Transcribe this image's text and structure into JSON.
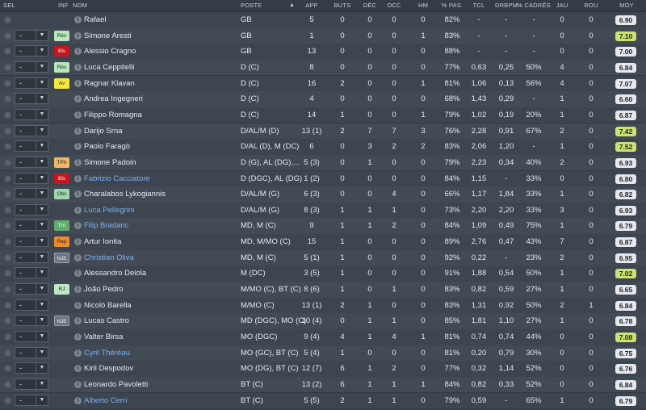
{
  "headers": {
    "sel": "SEL",
    "inf": "INF",
    "nom": "NOM",
    "poste": "POSTE",
    "app": "APP",
    "buts": "BUTS",
    "dec": "DÉC",
    "occ": "OCC",
    "hm": "HM",
    "pas": "% PAS.",
    "tcl": "TCL",
    "drbpm": "DRBPM",
    "cadres": "% CADRÉS",
    "jau": "JAU",
    "rou": "ROU",
    "moy": "MOY"
  },
  "colors": {
    "badge_res": "#b8e6bf",
    "badge_bls": "#c8141e",
    "badge_av": "#f2e640",
    "badge_tph": "#f0b862",
    "badge_obs": "#9fd9a8",
    "badge_trn": "#5fae6e",
    "badge_rep": "#ef8a2a",
    "badge_nje": "#6c7480",
    "badge_rj": "#bfe7c4",
    "rating_high": "#cbe26f",
    "rating_normal": "#e6e8ec"
  },
  "players": [
    {
      "sel": "",
      "badge": "",
      "name": "Rafael",
      "loan": false,
      "poste": "GB",
      "app": "5",
      "buts": "0",
      "dec": "0",
      "occ": "0",
      "hm": "0",
      "pas": "82%",
      "tcl": "-",
      "drbpm": "-",
      "cadres": "-",
      "jau": "0",
      "rou": "0",
      "moy": "6.90",
      "high": false
    },
    {
      "sel": "-",
      "badge": "Rés",
      "name": "Simone Aresti",
      "loan": false,
      "poste": "GB",
      "app": "1",
      "buts": "0",
      "dec": "0",
      "occ": "0",
      "hm": "1",
      "pas": "83%",
      "tcl": "-",
      "drbpm": "-",
      "cadres": "-",
      "jau": "0",
      "rou": "0",
      "moy": "7.10",
      "high": true
    },
    {
      "sel": "-",
      "badge": "Bls",
      "name": "Alessio Cragno",
      "loan": false,
      "poste": "GB",
      "app": "13",
      "buts": "0",
      "dec": "0",
      "occ": "0",
      "hm": "0",
      "pas": "88%",
      "tcl": "-",
      "drbpm": "-",
      "cadres": "-",
      "jau": "0",
      "rou": "0",
      "moy": "7.00",
      "high": false
    },
    {
      "sel": "-",
      "badge": "Rés",
      "name": "Luca Ceppitelli",
      "loan": false,
      "poste": "D (C)",
      "app": "8",
      "buts": "0",
      "dec": "0",
      "occ": "0",
      "hm": "0",
      "pas": "77%",
      "tcl": "0,63",
      "drbpm": "0,25",
      "cadres": "50%",
      "jau": "4",
      "rou": "0",
      "moy": "6.84",
      "high": false
    },
    {
      "sel": "-",
      "badge": "Av",
      "name": "Ragnar Klavan",
      "loan": false,
      "poste": "D (C)",
      "app": "16",
      "buts": "2",
      "dec": "0",
      "occ": "0",
      "hm": "1",
      "pas": "81%",
      "tcl": "1,06",
      "drbpm": "0,13",
      "cadres": "56%",
      "jau": "4",
      "rou": "0",
      "moy": "7.07",
      "high": false
    },
    {
      "sel": "-",
      "badge": "",
      "name": "Andrea Ingegneri",
      "loan": false,
      "poste": "D (C)",
      "app": "4",
      "buts": "0",
      "dec": "0",
      "occ": "0",
      "hm": "0",
      "pas": "68%",
      "tcl": "1,43",
      "drbpm": "0,29",
      "cadres": "-",
      "jau": "1",
      "rou": "0",
      "moy": "6.60",
      "high": false
    },
    {
      "sel": "-",
      "badge": "",
      "name": "Filippo Romagna",
      "loan": false,
      "poste": "D (C)",
      "app": "14",
      "buts": "1",
      "dec": "0",
      "occ": "0",
      "hm": "1",
      "pas": "79%",
      "tcl": "1,02",
      "drbpm": "0,19",
      "cadres": "20%",
      "jau": "1",
      "rou": "0",
      "moy": "6.87",
      "high": false
    },
    {
      "sel": "-",
      "badge": "",
      "name": "Darijo Srna",
      "loan": false,
      "poste": "D/AL/M (D)",
      "app": "13 (1)",
      "buts": "2",
      "dec": "7",
      "occ": "7",
      "hm": "3",
      "pas": "76%",
      "tcl": "2,28",
      "drbpm": "0,91",
      "cadres": "67%",
      "jau": "2",
      "rou": "0",
      "moy": "7.42",
      "high": true
    },
    {
      "sel": "-",
      "badge": "",
      "name": "Paolo Faragò",
      "loan": false,
      "poste": "D/AL (D), M (DC)",
      "app": "6",
      "buts": "0",
      "dec": "3",
      "occ": "2",
      "hm": "2",
      "pas": "83%",
      "tcl": "2,06",
      "drbpm": "1,20",
      "cadres": "-",
      "jau": "1",
      "rou": "0",
      "moy": "7.52",
      "high": true
    },
    {
      "sel": "-",
      "badge": "TPh",
      "name": "Simone Padoin",
      "loan": false,
      "poste": "D (G), AL (DG),...",
      "app": "5 (3)",
      "buts": "0",
      "dec": "1",
      "occ": "0",
      "hm": "0",
      "pas": "79%",
      "tcl": "2,23",
      "drbpm": "0,34",
      "cadres": "40%",
      "jau": "2",
      "rou": "0",
      "moy": "6.93",
      "high": false
    },
    {
      "sel": "-",
      "badge": "Bls",
      "name": "Fabrizio Cacciatore",
      "loan": true,
      "poste": "D (DGC), AL (DG)",
      "app": "1 (2)",
      "buts": "0",
      "dec": "0",
      "occ": "0",
      "hm": "0",
      "pas": "84%",
      "tcl": "1,15",
      "drbpm": "-",
      "cadres": "33%",
      "jau": "0",
      "rou": "0",
      "moy": "6.80",
      "high": false
    },
    {
      "sel": "-",
      "badge": "Obs",
      "name": "Charalabos Lykogiannis",
      "loan": false,
      "poste": "D/AL/M (G)",
      "app": "6 (3)",
      "buts": "0",
      "dec": "0",
      "occ": "4",
      "hm": "0",
      "pas": "66%",
      "tcl": "1,17",
      "drbpm": "1,84",
      "cadres": "33%",
      "jau": "1",
      "rou": "0",
      "moy": "6.82",
      "high": false
    },
    {
      "sel": "-",
      "badge": "",
      "name": "Luca Pellegrini",
      "loan": true,
      "poste": "D/AL/M (G)",
      "app": "8 (3)",
      "buts": "1",
      "dec": "1",
      "occ": "1",
      "hm": "0",
      "pas": "73%",
      "tcl": "2,20",
      "drbpm": "2,20",
      "cadres": "33%",
      "jau": "3",
      "rou": "0",
      "moy": "6.93",
      "high": false
    },
    {
      "sel": "-",
      "badge": "Trn",
      "name": "Filip Bradaric",
      "loan": true,
      "poste": "MD, M (C)",
      "app": "9",
      "buts": "1",
      "dec": "1",
      "occ": "2",
      "hm": "0",
      "pas": "84%",
      "tcl": "1,09",
      "drbpm": "0,49",
      "cadres": "75%",
      "jau": "1",
      "rou": "0",
      "moy": "6.79",
      "high": false
    },
    {
      "sel": "-",
      "badge": "Rep",
      "name": "Artur Ionita",
      "loan": false,
      "poste": "MD, M/MO (C)",
      "app": "15",
      "buts": "1",
      "dec": "0",
      "occ": "0",
      "hm": "0",
      "pas": "89%",
      "tcl": "2,76",
      "drbpm": "0,47",
      "cadres": "43%",
      "jau": "7",
      "rou": "0",
      "moy": "6.87",
      "high": false
    },
    {
      "sel": "-",
      "badge": "NJE",
      "name": "Christian Oliva",
      "loan": true,
      "poste": "MD, M (C)",
      "app": "5 (1)",
      "buts": "1",
      "dec": "0",
      "occ": "0",
      "hm": "0",
      "pas": "92%",
      "tcl": "0,22",
      "drbpm": "-",
      "cadres": "23%",
      "jau": "2",
      "rou": "0",
      "moy": "6.95",
      "high": false
    },
    {
      "sel": "-",
      "badge": "",
      "name": "Alessandro Deiola",
      "loan": false,
      "poste": "M (DC)",
      "app": "3 (5)",
      "buts": "1",
      "dec": "0",
      "occ": "0",
      "hm": "0",
      "pas": "91%",
      "tcl": "1,88",
      "drbpm": "0,54",
      "cadres": "50%",
      "jau": "1",
      "rou": "0",
      "moy": "7.02",
      "high": true
    },
    {
      "sel": "-",
      "badge": "RJ",
      "name": "João Pedro",
      "loan": false,
      "poste": "M/MO (C), BT (C)",
      "app": "8 (6)",
      "buts": "1",
      "dec": "0",
      "occ": "1",
      "hm": "0",
      "pas": "83%",
      "tcl": "0,82",
      "drbpm": "0,59",
      "cadres": "27%",
      "jau": "1",
      "rou": "0",
      "moy": "6.65",
      "high": false
    },
    {
      "sel": "-",
      "badge": "",
      "name": "Nicolò Barella",
      "loan": false,
      "poste": "M/MO (C)",
      "app": "13 (1)",
      "buts": "2",
      "dec": "1",
      "occ": "0",
      "hm": "0",
      "pas": "83%",
      "tcl": "1,31",
      "drbpm": "0,92",
      "cadres": "50%",
      "jau": "2",
      "rou": "1",
      "moy": "6.84",
      "high": false
    },
    {
      "sel": "-",
      "badge": "NJE",
      "name": "Lucas Castro",
      "loan": false,
      "poste": "MD (DGC), MO (C)",
      "app": "10 (4)",
      "buts": "0",
      "dec": "1",
      "occ": "1",
      "hm": "0",
      "pas": "85%",
      "tcl": "1,81",
      "drbpm": "1,10",
      "cadres": "27%",
      "jau": "1",
      "rou": "0",
      "moy": "6.78",
      "high": false
    },
    {
      "sel": "-",
      "badge": "",
      "name": "Valter Birsa",
      "loan": false,
      "poste": "MO (DGC)",
      "app": "9 (4)",
      "buts": "4",
      "dec": "1",
      "occ": "4",
      "hm": "1",
      "pas": "81%",
      "tcl": "0,74",
      "drbpm": "0,74",
      "cadres": "44%",
      "jau": "0",
      "rou": "0",
      "moy": "7.08",
      "high": true
    },
    {
      "sel": "-",
      "badge": "",
      "name": "Cyril Théréau",
      "loan": true,
      "poste": "MO (GC), BT (C)",
      "app": "5 (4)",
      "buts": "1",
      "dec": "0",
      "occ": "0",
      "hm": "0",
      "pas": "81%",
      "tcl": "0,20",
      "drbpm": "0,79",
      "cadres": "30%",
      "jau": "0",
      "rou": "0",
      "moy": "6.75",
      "high": false
    },
    {
      "sel": "-",
      "badge": "",
      "name": "Kiril Despodov",
      "loan": false,
      "poste": "MO (DG), BT (C)",
      "app": "12 (7)",
      "buts": "6",
      "dec": "1",
      "occ": "2",
      "hm": "0",
      "pas": "77%",
      "tcl": "0,32",
      "drbpm": "1,14",
      "cadres": "52%",
      "jau": "0",
      "rou": "0",
      "moy": "6.76",
      "high": false
    },
    {
      "sel": "-",
      "badge": "",
      "name": "Leonardo Pavoletti",
      "loan": false,
      "poste": "BT (C)",
      "app": "13 (2)",
      "buts": "6",
      "dec": "1",
      "occ": "1",
      "hm": "1",
      "pas": "84%",
      "tcl": "0,82",
      "drbpm": "0,33",
      "cadres": "52%",
      "jau": "0",
      "rou": "0",
      "moy": "6.84",
      "high": false
    },
    {
      "sel": "-",
      "badge": "",
      "name": "Alberto Cerri",
      "loan": true,
      "poste": "BT (C)",
      "app": "5 (5)",
      "buts": "2",
      "dec": "1",
      "occ": "1",
      "hm": "0",
      "pas": "79%",
      "tcl": "0,59",
      "drbpm": "-",
      "cadres": "65%",
      "jau": "1",
      "rou": "0",
      "moy": "6.79",
      "high": false
    }
  ]
}
